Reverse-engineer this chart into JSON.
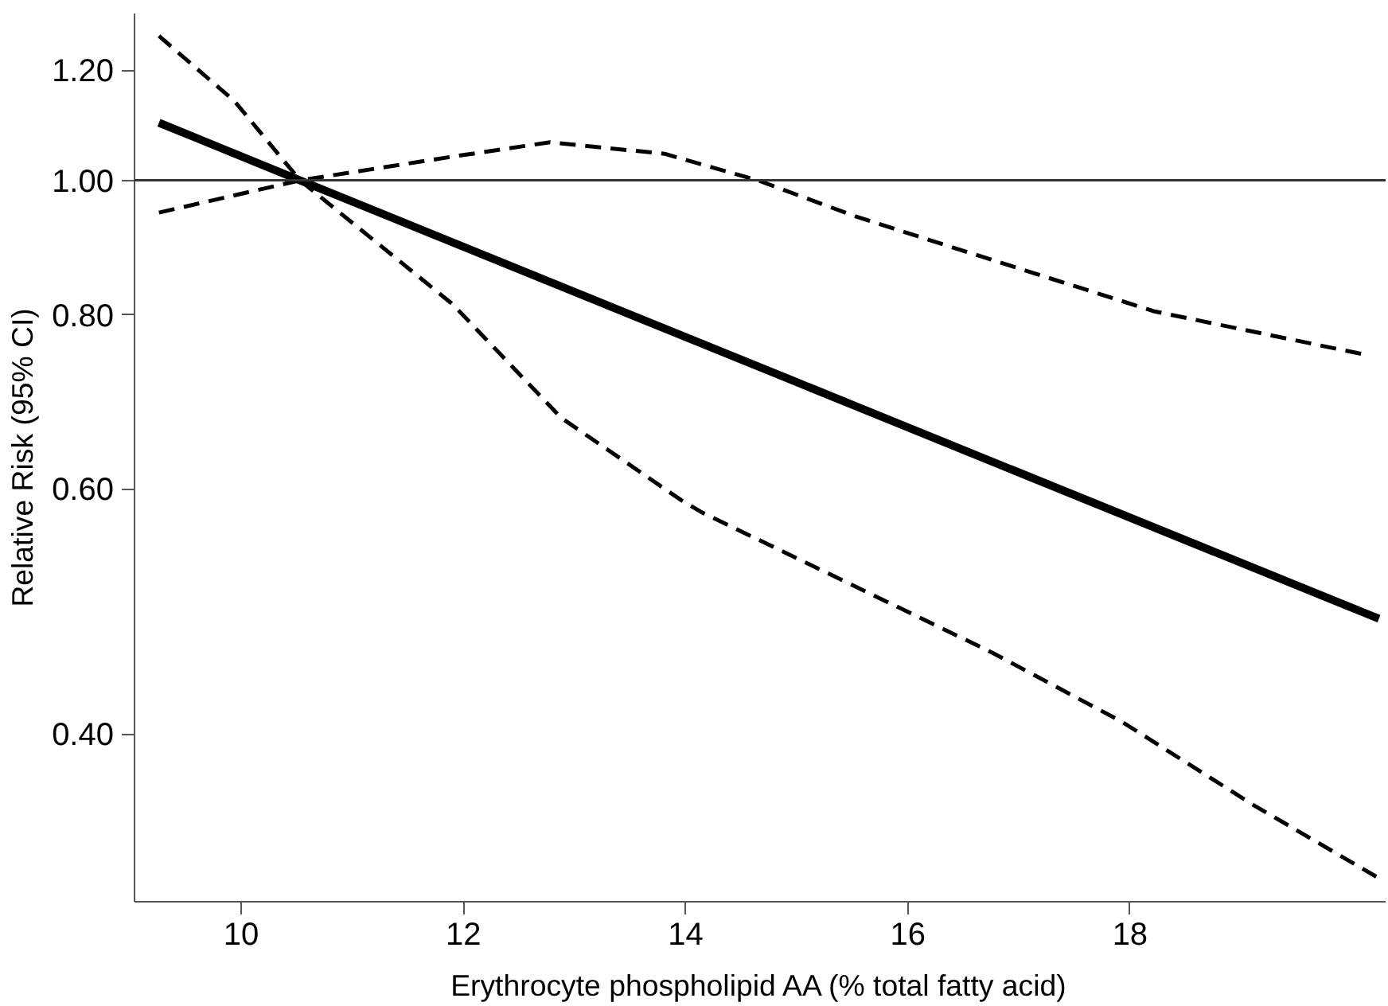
{
  "chart_data": {
    "type": "line",
    "xlabel": "Erythrocyte phospholipid AA (% total fatty acid)",
    "ylabel": "Relative Risk (95% CI)",
    "log": "y",
    "grid": false,
    "marker": "none",
    "xlim": [
      9.04,
      20.3
    ],
    "xticks": [
      10,
      12,
      14,
      16,
      18
    ],
    "ylim": [
      0.303,
      1.318
    ],
    "yticks": [
      {
        "value": 0.4,
        "label": "0.40"
      },
      {
        "value": 0.6,
        "label": "0.60"
      },
      {
        "value": 0.8,
        "label": "0.80"
      },
      {
        "value": 1.0,
        "label": "1.00"
      },
      {
        "value": 1.2,
        "label": "1.20"
      }
    ],
    "ref_lines": [
      {
        "axis": "y",
        "value": 1.0,
        "label": null,
        "color": "#333333"
      }
    ],
    "series": [
      {
        "color": "#000000",
        "line_style": "solid",
        "x": [
          9.26,
          10.53,
          15.0,
          20.24
        ],
        "values": [
          1.1,
          1.0,
          0.716,
          0.484
        ]
      },
      {
        "color": "#000000",
        "line_style": "dashed",
        "x": [
          9.26,
          10.53,
          11.9,
          12.78,
          13.81,
          14.65,
          15.53,
          16.75,
          18.22,
          20.13
        ],
        "values": [
          0.948,
          1.0,
          1.04,
          1.065,
          1.045,
          1.0,
          0.942,
          0.877,
          0.805,
          0.749
        ]
      },
      {
        "color": "#000000",
        "line_style": "dashed",
        "x": [
          9.26,
          9.94,
          10.53,
          11.9,
          12.88,
          13.96,
          14.15,
          16.75,
          17.93,
          19.1,
          20.24
        ],
        "values": [
          1.27,
          1.14,
          1.0,
          0.815,
          0.675,
          0.589,
          0.577,
          0.458,
          0.408,
          0.356,
          0.315
        ]
      }
    ]
  }
}
